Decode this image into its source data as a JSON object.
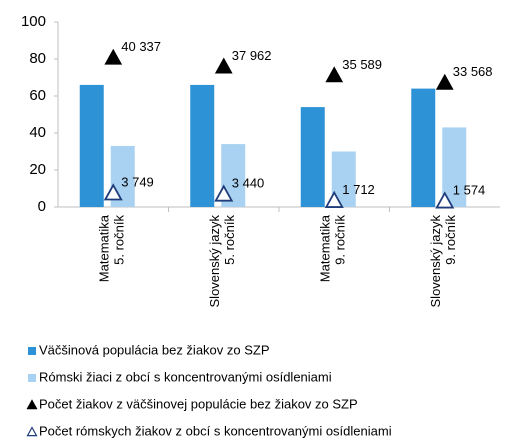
{
  "chart_data": {
    "type": "bar",
    "categories": [
      [
        "Matematika",
        "5. ročník"
      ],
      [
        "Slovenský jazyk",
        "5. ročník"
      ],
      [
        "Matematika",
        "9. ročník"
      ],
      [
        "Slovenský jazyk",
        "9. ročník"
      ]
    ],
    "series": [
      {
        "name": "Väčšinová populácia bez žiakov zo SZP",
        "color": "#2e93d6",
        "kind": "bar",
        "values": [
          66,
          66,
          54,
          64
        ]
      },
      {
        "name": "Rómski žiaci z obcí s koncentrovanými osídleniami",
        "color": "#a9d1f1",
        "kind": "bar",
        "values": [
          33,
          34,
          30,
          43
        ]
      },
      {
        "name": "Počet žiakov z väčšinovej populácie bez žiakov zo SZP",
        "color": "#000000",
        "kind": "filled-triangle",
        "axis": "y2",
        "values": [
          40337,
          37962,
          35589,
          33568
        ],
        "value_labels": [
          "40 337",
          "37 962",
          "35 589",
          "33 568"
        ]
      },
      {
        "name": "Počet rómskych žiakov z obcí s koncentrovanými osídleniami",
        "color": "#1f3d7a",
        "kind": "hollow-triangle",
        "axis": "y2",
        "values": [
          3749,
          3440,
          1712,
          1574
        ],
        "value_labels": [
          "3 749",
          "3 440",
          "1 712",
          "1 574"
        ]
      }
    ],
    "ylim": [
      0,
      100
    ],
    "yticks": [
      0,
      20,
      40,
      60,
      80,
      100
    ],
    "y2lim": [
      0,
      50000
    ],
    "grid": false
  }
}
